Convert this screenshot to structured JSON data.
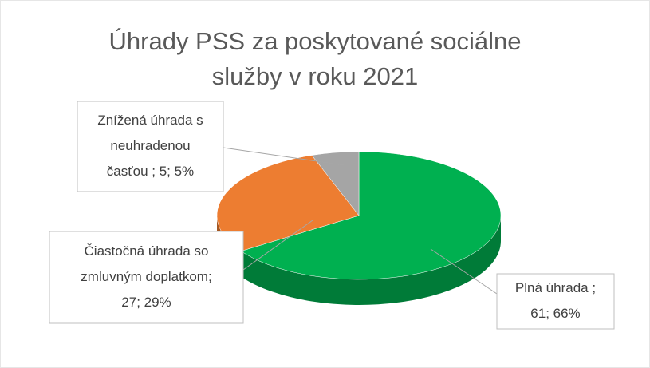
{
  "chart_data": {
    "type": "pie3d",
    "title": "Úhrady PSS za poskytované sociálne služby v roku 2021",
    "values": [
      61,
      27,
      5
    ],
    "value_labels": [
      [
        "Plná úhrada ;",
        "61; 66%"
      ],
      [
        "Čiastočná úhrada so",
        "zmluvným doplatkom;",
        "27; 29%"
      ],
      [
        "Znížená úhrada s",
        "neuhradenou",
        "časťou ; 5; 5%"
      ]
    ],
    "colors": [
      "#00b050",
      "#ed7d31",
      "#a5a5a5"
    ]
  }
}
